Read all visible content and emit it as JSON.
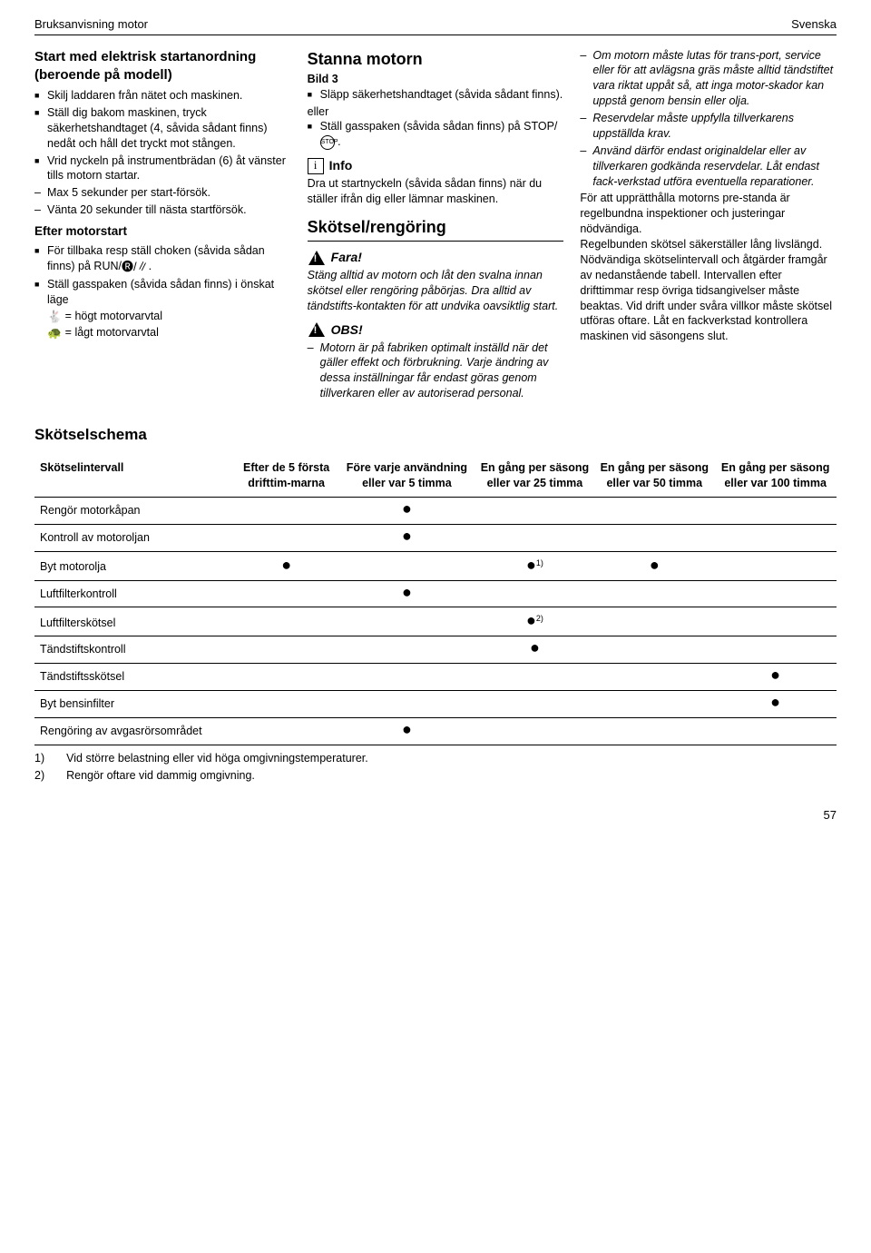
{
  "header": {
    "left": "Bruksanvisning motor",
    "right": "Svenska"
  },
  "col1": {
    "title": "Start med elektrisk startanordning (beroende på modell)",
    "b1": "Skilj laddaren från nätet och maskinen.",
    "b2": "Ställ dig bakom maskinen, tryck säkerhetshandtaget (4, såvida sådant finns) nedåt och håll det tryckt mot stången.",
    "b3": "Vrid nyckeln på instrumentbrädan (6) åt vänster tills motorn startar.",
    "d1": "Max 5 sekunder per start-försök.",
    "d2": "Vänta 20 sekunder till nästa startförsök.",
    "sub1_title": "Efter motorstart",
    "b4": "För tillbaka resp ställ choken (såvida sådan finns) på RUN/",
    "b5": "Ställ gasspaken (såvida sådan finns) i önskat läge",
    "g1": "= högt motorvarvtal",
    "g2": "= lågt motorvarvtal"
  },
  "col2": {
    "title": "Stanna motorn",
    "bild": "Bild 3",
    "b1": "Släpp säkerhetshandtaget (såvida sådant finns).",
    "eller": "eller",
    "b2": "Ställ gasspaken (såvida sådan finns) på STOP/",
    "info_label": "Info",
    "info_text": "Dra ut startnyckeln (såvida sådan finns) när du ställer ifrån dig eller lämnar maskinen.",
    "section2": "Skötsel/rengöring",
    "fara_label": "Fara!",
    "fara_text": "Stäng alltid av motorn och låt den svalna innan skötsel eller rengöring påbörjas. Dra alltid av tändstifts-kontakten för att undvika oavsiktlig start.",
    "obs_label": "OBS!",
    "obs_text": "Motorn är på fabriken optimalt inställd när det gäller effekt och förbrukning. Varje ändring av dessa inställningar får endast göras genom tillverkaren eller av autoriserad personal."
  },
  "col3": {
    "d1": "Om motorn måste lutas för trans-port, service eller för att avlägsna gräs måste alltid tändstiftet vara riktat uppåt så, att inga motor-skador kan uppstå genom bensin eller olja.",
    "d2": "Reservdelar måste uppfylla tillverkarens uppställda krav.",
    "d3": "Använd därför endast originaldelar eller av tillverkaren godkända reservdelar. Låt endast fack-verkstad utföra eventuella reparationer.",
    "p1": "För att upprätthålla motorns pre-standa är regelbundna inspektioner och justeringar nödvändiga.",
    "p2": "Regelbunden skötsel säkerställer lång livslängd.",
    "p3": "Nödvändiga skötselintervall och åtgärder framgår av nedanstående tabell. Intervallen efter drifttimmar resp övriga tidsangivelser måste beaktas. Vid drift under svåra villkor måste skötsel utföras oftare. Låt en fackverkstad kontrollera maskinen vid säsongens slut."
  },
  "schedule": {
    "title": "Skötselschema",
    "row_label": "Skötselintervall",
    "headers": [
      "Efter de 5 första drifttim-marna",
      "Före varje användning eller var 5 timma",
      "En gång per säsong eller var 25 timma",
      "En gång per säsong eller var 50 timma",
      "En gång per säsong eller var 100 timma"
    ],
    "rows": [
      {
        "label": "Rengör motorkåpan",
        "cells": [
          "",
          "●",
          "",
          "",
          ""
        ]
      },
      {
        "label": "Kontroll av motoroljan",
        "cells": [
          "",
          "●",
          "",
          "",
          ""
        ]
      },
      {
        "label": "Byt motorolja",
        "cells": [
          "●",
          "",
          "●1)",
          "●",
          ""
        ]
      },
      {
        "label": "Luftfilterkontroll",
        "cells": [
          "",
          "●",
          "",
          "",
          ""
        ]
      },
      {
        "label": "Luftfilterskötsel",
        "cells": [
          "",
          "",
          "●2)",
          "",
          ""
        ]
      },
      {
        "label": "Tändstiftskontroll",
        "cells": [
          "",
          "",
          "●",
          "",
          ""
        ]
      },
      {
        "label": "Tändstiftsskötsel",
        "cells": [
          "",
          "",
          "",
          "",
          "●"
        ]
      },
      {
        "label": "Byt bensinfilter",
        "cells": [
          "",
          "",
          "",
          "",
          "●"
        ]
      },
      {
        "label": "Rengöring av avgasrörsområdet",
        "cells": [
          "",
          "●",
          "",
          "",
          ""
        ]
      }
    ],
    "foot1_num": "1)",
    "foot1": "Vid större belastning eller vid höga omgivningstemperaturer.",
    "foot2_num": "2)",
    "foot2": "Rengör oftare vid dammig omgivning."
  },
  "page": "57"
}
